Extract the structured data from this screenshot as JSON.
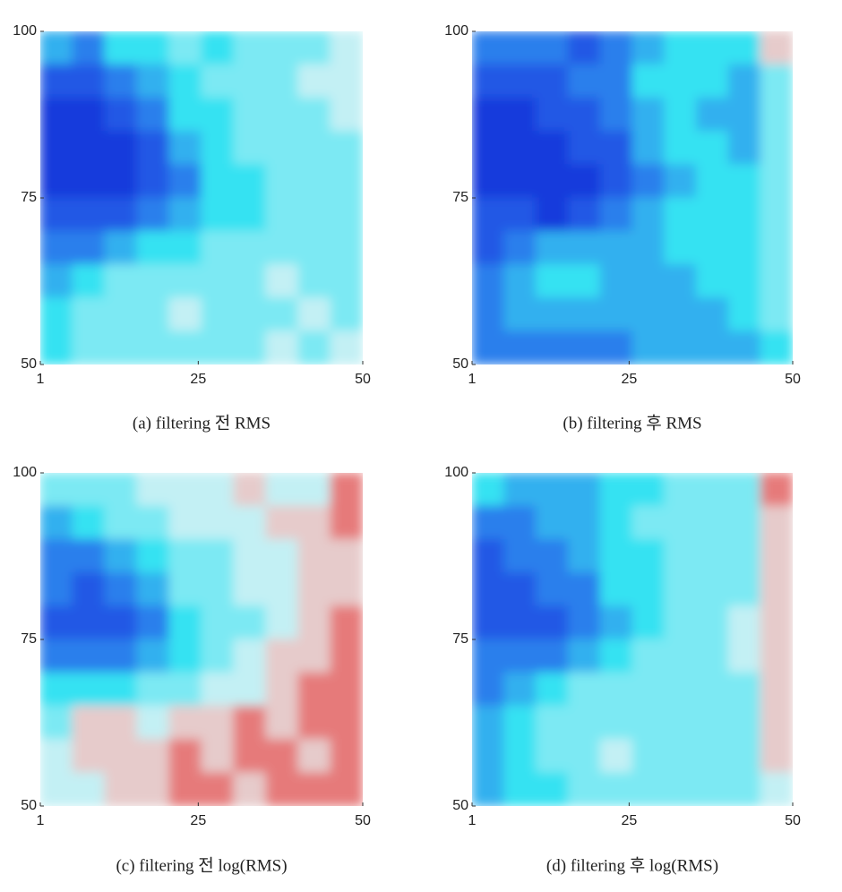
{
  "chart_data": [
    {
      "type": "heatmap",
      "caption": "(a) filtering 전 RMS",
      "xlim": [
        1,
        50
      ],
      "ylim": [
        50,
        100
      ],
      "xticks": [
        1,
        25,
        50
      ],
      "yticks": [
        50,
        75,
        100
      ],
      "colorscale": [
        "#0a1ed2",
        "#2a66ea",
        "#36e2f2",
        "#e6f4f4",
        "#e62828"
      ],
      "z": [
        [
          0.4,
          0.3,
          0.5,
          0.5,
          0.6,
          0.5,
          0.6,
          0.6,
          0.6,
          0.7
        ],
        [
          0.2,
          0.2,
          0.3,
          0.4,
          0.5,
          0.6,
          0.6,
          0.6,
          0.7,
          0.7
        ],
        [
          0.1,
          0.1,
          0.2,
          0.3,
          0.5,
          0.5,
          0.6,
          0.6,
          0.6,
          0.7
        ],
        [
          0.1,
          0.1,
          0.1,
          0.2,
          0.4,
          0.5,
          0.6,
          0.6,
          0.6,
          0.6
        ],
        [
          0.1,
          0.1,
          0.1,
          0.2,
          0.3,
          0.5,
          0.5,
          0.6,
          0.6,
          0.6
        ],
        [
          0.2,
          0.2,
          0.2,
          0.3,
          0.4,
          0.5,
          0.5,
          0.6,
          0.6,
          0.6
        ],
        [
          0.3,
          0.3,
          0.4,
          0.5,
          0.5,
          0.6,
          0.6,
          0.6,
          0.6,
          0.6
        ],
        [
          0.4,
          0.5,
          0.6,
          0.6,
          0.6,
          0.6,
          0.6,
          0.7,
          0.6,
          0.6
        ],
        [
          0.5,
          0.6,
          0.6,
          0.6,
          0.7,
          0.6,
          0.6,
          0.6,
          0.7,
          0.6
        ],
        [
          0.5,
          0.6,
          0.6,
          0.6,
          0.6,
          0.6,
          0.6,
          0.7,
          0.6,
          0.7
        ]
      ]
    },
    {
      "type": "heatmap",
      "caption": "(b) filtering 후 RMS",
      "xlim": [
        1,
        50
      ],
      "ylim": [
        50,
        100
      ],
      "xticks": [
        1,
        25,
        50
      ],
      "yticks": [
        50,
        75,
        100
      ],
      "colorscale": [
        "#0a1ed2",
        "#2a66ea",
        "#36e2f2",
        "#e6f4f4",
        "#e62828"
      ],
      "z": [
        [
          0.3,
          0.3,
          0.3,
          0.2,
          0.3,
          0.4,
          0.5,
          0.5,
          0.5,
          0.8
        ],
        [
          0.2,
          0.2,
          0.2,
          0.3,
          0.3,
          0.5,
          0.5,
          0.5,
          0.4,
          0.6
        ],
        [
          0.1,
          0.1,
          0.2,
          0.2,
          0.3,
          0.4,
          0.5,
          0.4,
          0.4,
          0.6
        ],
        [
          0.1,
          0.1,
          0.1,
          0.2,
          0.2,
          0.4,
          0.5,
          0.5,
          0.4,
          0.6
        ],
        [
          0.1,
          0.1,
          0.1,
          0.1,
          0.2,
          0.3,
          0.4,
          0.5,
          0.5,
          0.6
        ],
        [
          0.2,
          0.2,
          0.1,
          0.2,
          0.3,
          0.4,
          0.5,
          0.5,
          0.5,
          0.6
        ],
        [
          0.2,
          0.3,
          0.4,
          0.4,
          0.4,
          0.4,
          0.5,
          0.5,
          0.5,
          0.6
        ],
        [
          0.3,
          0.4,
          0.5,
          0.5,
          0.4,
          0.4,
          0.4,
          0.5,
          0.5,
          0.6
        ],
        [
          0.3,
          0.4,
          0.4,
          0.4,
          0.4,
          0.4,
          0.4,
          0.4,
          0.5,
          0.6
        ],
        [
          0.3,
          0.3,
          0.3,
          0.3,
          0.3,
          0.4,
          0.4,
          0.4,
          0.4,
          0.5
        ]
      ]
    },
    {
      "type": "heatmap",
      "caption": "(c) filtering 전 log(RMS)",
      "xlim": [
        1,
        50
      ],
      "ylim": [
        50,
        100
      ],
      "xticks": [
        1,
        25,
        50
      ],
      "yticks": [
        50,
        75,
        100
      ],
      "colorscale": [
        "#0a1ed2",
        "#2a66ea",
        "#36e2f2",
        "#e6f4f4",
        "#e62828"
      ],
      "z": [
        [
          0.6,
          0.6,
          0.6,
          0.7,
          0.7,
          0.7,
          0.8,
          0.7,
          0.7,
          0.9
        ],
        [
          0.4,
          0.5,
          0.6,
          0.6,
          0.7,
          0.7,
          0.7,
          0.8,
          0.8,
          0.9
        ],
        [
          0.3,
          0.3,
          0.4,
          0.5,
          0.6,
          0.6,
          0.7,
          0.7,
          0.8,
          0.8
        ],
        [
          0.3,
          0.2,
          0.3,
          0.4,
          0.6,
          0.6,
          0.7,
          0.7,
          0.8,
          0.8
        ],
        [
          0.2,
          0.2,
          0.2,
          0.3,
          0.5,
          0.6,
          0.6,
          0.7,
          0.8,
          0.9
        ],
        [
          0.3,
          0.3,
          0.3,
          0.4,
          0.5,
          0.6,
          0.7,
          0.8,
          0.8,
          0.9
        ],
        [
          0.5,
          0.5,
          0.5,
          0.6,
          0.6,
          0.7,
          0.7,
          0.8,
          0.9,
          0.9
        ],
        [
          0.6,
          0.8,
          0.8,
          0.7,
          0.8,
          0.8,
          0.9,
          0.8,
          0.9,
          0.9
        ],
        [
          0.7,
          0.8,
          0.8,
          0.8,
          0.9,
          0.8,
          0.9,
          0.9,
          0.8,
          0.9
        ],
        [
          0.7,
          0.7,
          0.8,
          0.8,
          0.9,
          0.9,
          0.8,
          0.9,
          0.9,
          0.9
        ]
      ]
    },
    {
      "type": "heatmap",
      "caption": "(d) filtering 후 log(RMS)",
      "xlim": [
        1,
        50
      ],
      "ylim": [
        50,
        100
      ],
      "xticks": [
        1,
        25,
        50
      ],
      "yticks": [
        50,
        75,
        100
      ],
      "colorscale": [
        "#0a1ed2",
        "#2a66ea",
        "#36e2f2",
        "#e6f4f4",
        "#e62828"
      ],
      "z": [
        [
          0.5,
          0.4,
          0.4,
          0.4,
          0.5,
          0.5,
          0.6,
          0.6,
          0.6,
          0.9
        ],
        [
          0.3,
          0.3,
          0.4,
          0.4,
          0.5,
          0.6,
          0.6,
          0.6,
          0.6,
          0.8
        ],
        [
          0.2,
          0.3,
          0.3,
          0.4,
          0.5,
          0.5,
          0.6,
          0.6,
          0.6,
          0.8
        ],
        [
          0.2,
          0.2,
          0.3,
          0.3,
          0.5,
          0.5,
          0.6,
          0.6,
          0.6,
          0.8
        ],
        [
          0.2,
          0.2,
          0.2,
          0.3,
          0.4,
          0.5,
          0.6,
          0.6,
          0.7,
          0.8
        ],
        [
          0.3,
          0.3,
          0.3,
          0.4,
          0.5,
          0.6,
          0.6,
          0.6,
          0.7,
          0.8
        ],
        [
          0.3,
          0.4,
          0.5,
          0.6,
          0.6,
          0.6,
          0.6,
          0.6,
          0.6,
          0.8
        ],
        [
          0.4,
          0.5,
          0.6,
          0.6,
          0.6,
          0.6,
          0.6,
          0.6,
          0.6,
          0.8
        ],
        [
          0.4,
          0.5,
          0.6,
          0.6,
          0.7,
          0.6,
          0.6,
          0.6,
          0.6,
          0.8
        ],
        [
          0.4,
          0.5,
          0.5,
          0.6,
          0.6,
          0.6,
          0.6,
          0.6,
          0.6,
          0.7
        ]
      ]
    }
  ]
}
